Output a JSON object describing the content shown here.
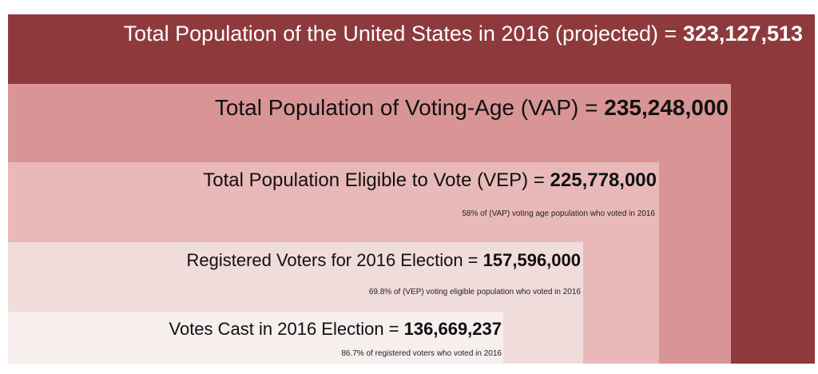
{
  "levels": [
    {
      "label": "Total Population of the United States in 2016 (projected) =",
      "value": "323,127,513"
    },
    {
      "label": "Total Population of Voting-Age (VAP) =",
      "value": "235,248,000"
    },
    {
      "label": "Total Population Eligible to Vote (VEP) =",
      "value": "225,778,000",
      "note": "58% of (VAP) voting age population who voted in 2016"
    },
    {
      "label": "Registered Voters for 2016 Election =",
      "value": "157,596,000",
      "note": "69.8% of (VEP) voting eligible population who voted in 2016"
    },
    {
      "label": "Votes Cast in 2016 Election =",
      "value": "136,669,237",
      "note": "86.7% of registered voters who voted in 2016"
    }
  ]
}
